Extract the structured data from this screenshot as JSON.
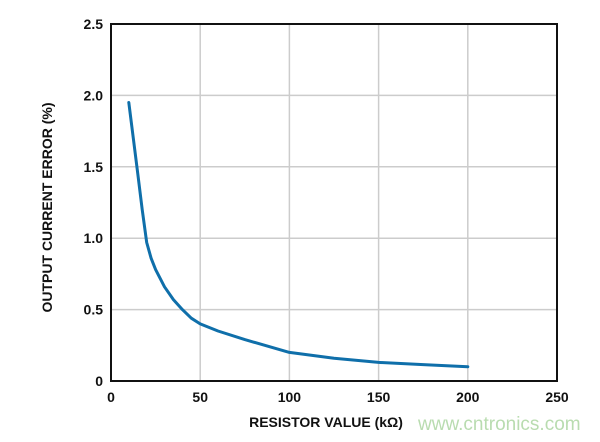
{
  "chart_data": {
    "type": "line",
    "title": "",
    "xlabel": "RESISTOR VALUE (kΩ)",
    "ylabel": "OUTPUT CURRENT ERROR (%)",
    "xlim": [
      0,
      250
    ],
    "ylim": [
      0,
      2.5
    ],
    "xticks": [
      "0",
      "50",
      "100",
      "150",
      "200",
      "250"
    ],
    "yticks": [
      "0",
      "0.5",
      "1.0",
      "1.5",
      "2.0",
      "2.5"
    ],
    "grid": true,
    "series": [
      {
        "color": "#0f6faa",
        "x": [
          10,
          12.5,
          15,
          17.5,
          20,
          22.5,
          25,
          30,
          35,
          40,
          45,
          50,
          60,
          75,
          100,
          125,
          150,
          175,
          200
        ],
        "y": [
          1.95,
          1.7,
          1.45,
          1.2,
          0.97,
          0.86,
          0.78,
          0.66,
          0.57,
          0.5,
          0.44,
          0.4,
          0.35,
          0.29,
          0.2,
          0.16,
          0.13,
          0.115,
          0.1
        ]
      }
    ]
  },
  "watermark": "www.cntronics.com"
}
